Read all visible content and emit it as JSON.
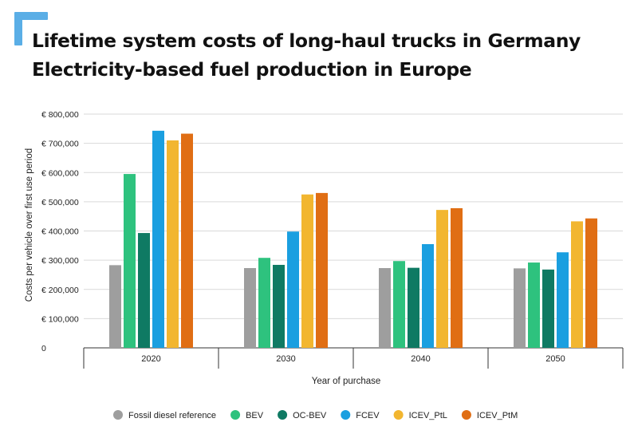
{
  "header": {
    "title_line1": "Lifetime system costs of long-haul trucks in Germany",
    "title_line2": "Electricity-based fuel production in Europe"
  },
  "colors": {
    "accent": "#5aaee6",
    "grid": "#d9d9d9",
    "axis": "#333333",
    "text": "#222222"
  },
  "chart_data": {
    "type": "bar",
    "title": "Lifetime system costs of long-haul trucks in Germany – Electricity-based fuel production in Europe",
    "xlabel": "Year of purchase",
    "ylabel": "Costs per vehicle over first use period",
    "ylim": [
      0,
      800000
    ],
    "yticks": [
      0,
      100000,
      200000,
      300000,
      400000,
      500000,
      600000,
      700000,
      800000
    ],
    "ytick_labels": [
      "0",
      "€ 100,000",
      "€ 200,000",
      "€ 300,000",
      "€ 400,000",
      "€ 500,000",
      "€ 600,000",
      "€ 700,000",
      "€ 800,000"
    ],
    "categories": [
      "2020",
      "2030",
      "2040",
      "2050"
    ],
    "grid": true,
    "legend_position": "bottom",
    "series": [
      {
        "name": "Fossil diesel reference",
        "color": "#9e9e9e",
        "values": [
          283000,
          273000,
          273000,
          272000
        ]
      },
      {
        "name": "BEV",
        "color": "#2ec27e",
        "values": [
          595000,
          308000,
          297000,
          292000
        ]
      },
      {
        "name": "OC-BEV",
        "color": "#0f7a63",
        "values": [
          393000,
          284000,
          274000,
          268000
        ]
      },
      {
        "name": "FCEV",
        "color": "#1a9fe0",
        "values": [
          743000,
          398000,
          355000,
          327000
        ]
      },
      {
        "name": "ICEV_PtL",
        "color": "#f2b630",
        "values": [
          710000,
          525000,
          472000,
          433000
        ]
      },
      {
        "name": "ICEV_PtM",
        "color": "#e06e14",
        "values": [
          733000,
          530000,
          478000,
          443000
        ]
      }
    ]
  }
}
